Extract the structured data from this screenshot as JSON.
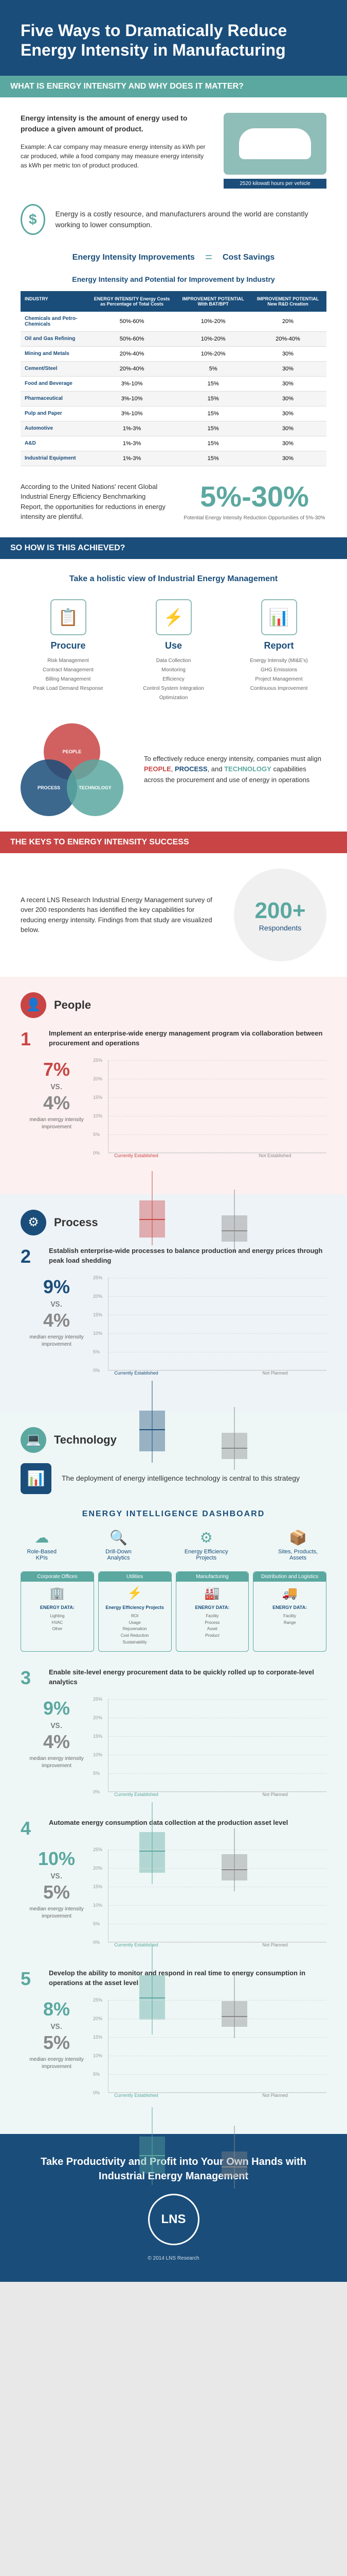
{
  "header": {
    "title": "Five Ways to Dramatically Reduce Energy Intensity in Manufacturing"
  },
  "sections": {
    "what": "WHAT IS ENERGY INTENSITY AND WHY DOES IT MATTER?",
    "how": "SO HOW IS THIS ACHIEVED?",
    "keys": "THE KEYS TO ENERGY INTENSITY SUCCESS"
  },
  "intro": {
    "p1": "Energy intensity is the amount of energy used to produce a given amount of product.",
    "p2": "Example: A car company may measure energy intensity as kWh per car produced, while a food company may measure energy intensity as kWh per metric ton of product produced.",
    "car_label": "2520 kilowatt hours per vehicle",
    "energy_cost": "Energy is a costly resource, and manufacturers around the world are constantly working to lower consumption.",
    "eq_left": "Energy Intensity Improvements",
    "eq_right": "Cost Savings"
  },
  "table": {
    "title": "Energy Intensity and Potential for Improvement by Industry",
    "headers": [
      "INDUSTRY",
      "ENERGY INTENSITY\nEnergy Costs as Percentage of Total Costs",
      "IMPROVEMENT POTENTIAL\nWith BAT/BPT",
      "IMPROVEMENT POTENTIAL\nNew R&D Creation"
    ],
    "rows": [
      [
        "Chemicals and Petro-Chemicals",
        "50%-60%",
        "10%-20%",
        "20%"
      ],
      [
        "Oil and Gas Refining",
        "50%-60%",
        "10%-20%",
        "20%-40%"
      ],
      [
        "Mining and Metals",
        "20%-40%",
        "10%-20%",
        "30%"
      ],
      [
        "Cement/Steel",
        "20%-40%",
        "5%",
        "30%"
      ],
      [
        "Food and Beverage",
        "3%-10%",
        "15%",
        "30%"
      ],
      [
        "Pharmaceutical",
        "3%-10%",
        "15%",
        "30%"
      ],
      [
        "Pulp and Paper",
        "3%-10%",
        "15%",
        "30%"
      ],
      [
        "Automotive",
        "1%-3%",
        "15%",
        "30%"
      ],
      [
        "A&D",
        "1%-3%",
        "15%",
        "30%"
      ],
      [
        "Industrial Equipment",
        "1%-3%",
        "15%",
        "30%"
      ]
    ]
  },
  "un": {
    "text": "According to the United Nations' recent Global Industrial Energy Efficiency Benchmarking Report, the opportunities for reductions in energy intensity are plentiful.",
    "percent": "5%-30%",
    "sub": "Potential Energy Intensity Reduction Opportunities of 5%-30%"
  },
  "holistic": {
    "title": "Take a holistic view of Industrial Energy Management",
    "cols": [
      {
        "title": "Procure",
        "icon": "📋",
        "items": [
          "Risk Management",
          "Contract Management",
          "Billing Management",
          "Peak Load Demand Response"
        ]
      },
      {
        "title": "Use",
        "icon": "⚡",
        "items": [
          "Data Collection",
          "Monitoring",
          "Efficiency",
          "Control System Integration",
          "Optimization"
        ]
      },
      {
        "title": "Report",
        "icon": "📊",
        "items": [
          "Energy Intensity (MI&E's)",
          "GHG Emissions",
          "Project Management",
          "Continuous Improvement"
        ]
      }
    ]
  },
  "venn": {
    "labels": [
      "PEOPLE",
      "PROCESS",
      "TECHNOLOGY"
    ],
    "text_pre": "To effectively reduce energy intensity, companies must align ",
    "text_post": " capabilities across the procurement and use of energy in operations"
  },
  "survey": {
    "text": "A recent LNS Research Industrial Energy Management survey of over 200 respondents has identified the key capabilities for reducing energy intensity. Findings from that study are visualized below.",
    "num": "200+",
    "label": "Respondents"
  },
  "cap_titles": {
    "people": "People",
    "process": "Process",
    "tech": "Technology"
  },
  "tech_intro": "The deployment of energy intelligence technology is central to this strategy",
  "dashboard": {
    "title": "ENERGY INTELLIGENCE DASHBOARD",
    "top": [
      {
        "icon": "☁",
        "label": "Role-Based KPIs"
      },
      {
        "icon": "🔍",
        "label": "Drill-Down Analytics"
      },
      {
        "icon": "⚙",
        "label": "Energy Efficiency Projects"
      },
      {
        "icon": "📦",
        "label": "Sites, Products, Assets"
      }
    ],
    "cols": [
      {
        "title": "Corporate Offices",
        "icon": "🏢",
        "label": "ENERGY DATA:",
        "items": [
          "Lighting",
          "HVAC",
          "Other"
        ]
      },
      {
        "title": "Utilities",
        "icon": "⚡",
        "label": "Energy Efficiency Projects",
        "items": [
          "ROI",
          "Usage",
          "Rejuvenation",
          "Cost Reduction",
          "Sustainability"
        ]
      },
      {
        "title": "Manufacturing",
        "icon": "🏭",
        "label": "ENERGY DATA:",
        "items": [
          "Facility",
          "Process",
          "Asset",
          "Product"
        ]
      },
      {
        "title": "Distribution and Logistics",
        "icon": "🚚",
        "label": "ENERGY DATA:",
        "items": [
          "Facility",
          "Range"
        ]
      }
    ]
  },
  "capabilities": [
    {
      "num": "1",
      "color": "red",
      "desc": "Implement an enterprise-wide energy management program via collaboration between procurement and operations",
      "stat_a": "7%",
      "stat_b": "4%",
      "label_a": "Currently Established",
      "label_b": "Not Established",
      "box": {
        "ymax": 25,
        "a": {
          "q1": 2,
          "med": 7,
          "q3": 12,
          "lo": 0,
          "hi": 20
        },
        "b": {
          "q1": 1,
          "med": 4,
          "q3": 8,
          "lo": -2,
          "hi": 15
        }
      }
    },
    {
      "num": "2",
      "color": "navy",
      "desc": "Establish enterprise-wide processes to balance production and energy prices through peak load shedding",
      "stat_a": "9%",
      "stat_b": "4%",
      "label_a": "Currently Established",
      "label_b": "Not Planned",
      "box": {
        "ymax": 25,
        "a": {
          "q1": 3,
          "med": 9,
          "q3": 14,
          "lo": 0,
          "hi": 22
        },
        "b": {
          "q1": 1,
          "med": 4,
          "q3": 8,
          "lo": -2,
          "hi": 15
        }
      }
    },
    {
      "num": "3",
      "color": "teal",
      "desc": "Enable site-level energy procurement data to be quickly rolled up to corporate-level analytics",
      "stat_a": "9%",
      "stat_b": "4%",
      "label_a": "Currently Established",
      "label_b": "Not Planned",
      "box": {
        "ymax": 25,
        "a": {
          "q1": 3,
          "med": 9,
          "q3": 14,
          "lo": 0,
          "hi": 22
        },
        "b": {
          "q1": 1,
          "med": 4,
          "q3": 8,
          "lo": -2,
          "hi": 15
        }
      }
    },
    {
      "num": "4",
      "color": "teal",
      "desc": "Automate energy consumption data collection at the production asset level",
      "stat_a": "10%",
      "stat_b": "5%",
      "label_a": "Currently Established",
      "label_b": "Not Planned",
      "box": {
        "ymax": 25,
        "a": {
          "q1": 4,
          "med": 10,
          "q3": 16,
          "lo": 0,
          "hi": 24
        },
        "b": {
          "q1": 2,
          "med": 5,
          "q3": 9,
          "lo": -1,
          "hi": 16
        }
      }
    },
    {
      "num": "5",
      "color": "teal",
      "desc": "Develop the ability to monitor and respond in real time to energy consumption in operations at the asset level",
      "stat_a": "8%",
      "stat_b": "5%",
      "label_a": "Currently Established",
      "label_b": "Not Planned",
      "box": {
        "ymax": 25,
        "a": {
          "q1": 3,
          "med": 8,
          "q3": 13,
          "lo": 0,
          "hi": 21
        },
        "b": {
          "q1": 2,
          "med": 5,
          "q3": 9,
          "lo": -1,
          "hi": 16
        }
      }
    }
  ],
  "stat_sub": "median energy intensity improvement",
  "footer": {
    "title": "Take Productivity and Profit into Your Own Hands with Industrial Energy Management",
    "logo": "LNS",
    "copy": "© 2014 LNS Research"
  },
  "colors": {
    "red": "#c94545",
    "navy": "#1a4d7a",
    "teal": "#5ba8a0",
    "gray": "#888"
  }
}
